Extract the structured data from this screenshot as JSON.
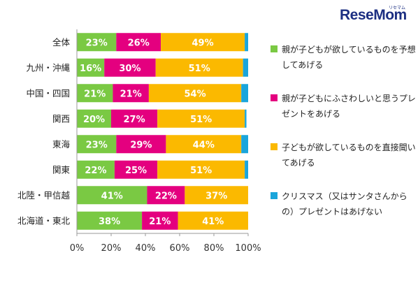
{
  "logo": {
    "text": "ReseMom",
    "sub": "リセマム"
  },
  "legend": [
    {
      "label": "親が子どもが欲しているものを予想してあげる",
      "color": "#7ac943"
    },
    {
      "label": "親が子どもにふさわしいと思うプレゼントをあげる",
      "color": "#e4007f"
    },
    {
      "label": "子どもが欲しているものを直接聞いてあげる",
      "color": "#fbb900"
    },
    {
      "label": "クリスマス（又はサンタさんからの）プレゼントはあげない",
      "color": "#1aa5db"
    }
  ],
  "chart_data": {
    "type": "bar",
    "orientation": "horizontal",
    "stacked": true,
    "categories": [
      "全体",
      "九州・沖縄",
      "中国・四国",
      "関西",
      "東海",
      "関東",
      "北陸・甲信越",
      "北海道・東北"
    ],
    "series": [
      {
        "name": "親が子どもが欲しているものを予想してあげる",
        "color": "#7ac943",
        "values": [
          23,
          16,
          21,
          20,
          23,
          22,
          41,
          38
        ]
      },
      {
        "name": "親が子どもにふさわしいと思うプレゼントをあげる",
        "color": "#e4007f",
        "values": [
          26,
          30,
          21,
          27,
          29,
          25,
          22,
          21
        ]
      },
      {
        "name": "子どもが欲しているものを直接聞いてあげる",
        "color": "#fbb900",
        "values": [
          49,
          51,
          54,
          51,
          44,
          51,
          37,
          41
        ]
      },
      {
        "name": "クリスマス（又はサンタさんからの）プレゼントはあげない",
        "color": "#1aa5db",
        "values": [
          2,
          3,
          4,
          1,
          4,
          2,
          0,
          0
        ]
      }
    ],
    "label_suffix": "%",
    "xlim": [
      0,
      100
    ],
    "xticks": [
      "0%",
      "20%",
      "40%",
      "60%",
      "80%",
      "100%"
    ],
    "grid": false,
    "legend_position": "right"
  }
}
